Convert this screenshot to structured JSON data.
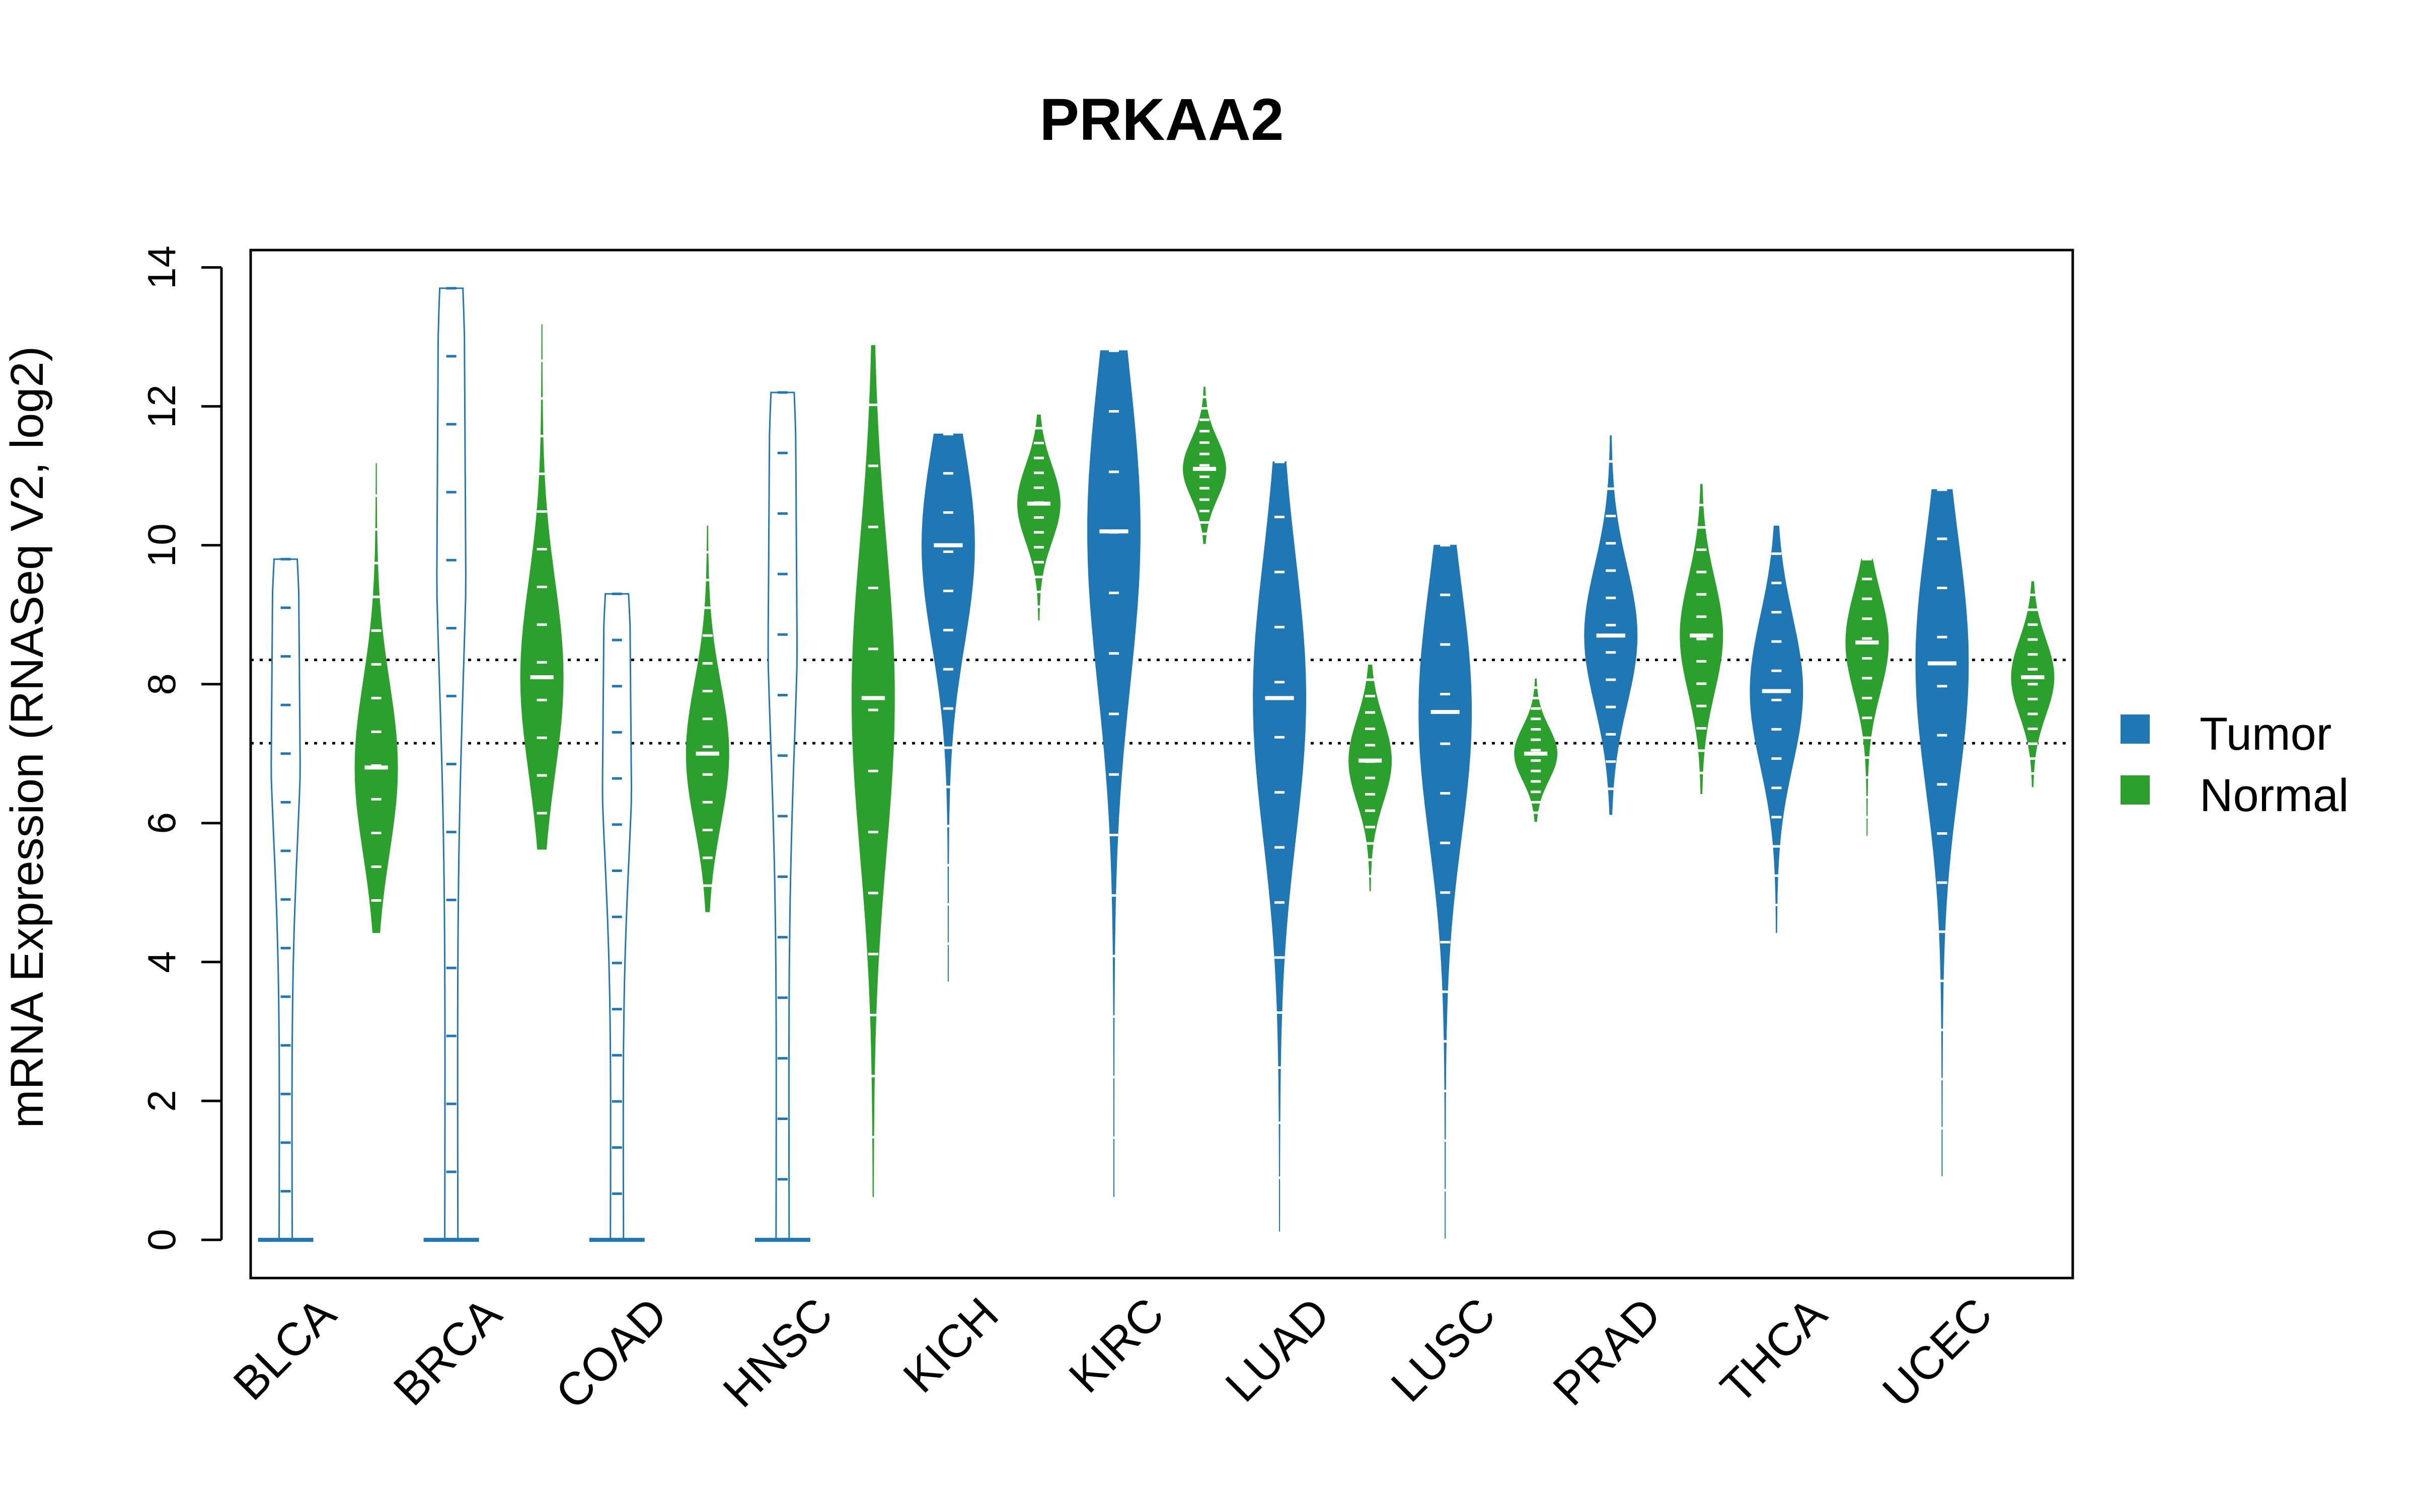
{
  "chart_data": {
    "type": "violin",
    "title": "PRKAA2",
    "xlabel": "",
    "ylabel": "mRNA Expression (RNASeq V2, log2)",
    "ylim": [
      -0.55,
      14.25
    ],
    "yticks": [
      0,
      2,
      4,
      6,
      8,
      10,
      12,
      14
    ],
    "reference_lines": [
      7.15,
      8.35
    ],
    "categories": [
      "BLCA",
      "BRCA",
      "COAD",
      "HNSC",
      "KICH",
      "KIRC",
      "LUAD",
      "LUSC",
      "PRAD",
      "THCA",
      "UCEC"
    ],
    "legend": {
      "placement": "right",
      "entries": [
        {
          "label": "Tumor",
          "color": "#1f77b4"
        },
        {
          "label": "Normal",
          "color": "#2ca02c"
        }
      ]
    },
    "series": [
      {
        "name": "Tumor",
        "color": "#1f77b4",
        "violins": [
          {
            "category": "BLCA",
            "min": 0.0,
            "max": 9.8,
            "median": 0.0,
            "zero_cluster": true
          },
          {
            "category": "BRCA",
            "min": 0.0,
            "max": 13.7,
            "median": 0.0,
            "zero_cluster": true
          },
          {
            "category": "COAD",
            "min": 0.0,
            "max": 9.3,
            "median": 0.0,
            "zero_cluster": true
          },
          {
            "category": "HNSC",
            "min": 0.0,
            "max": 12.2,
            "median": 0.0,
            "zero_cluster": true
          },
          {
            "category": "KICH",
            "min": 3.7,
            "max": 11.6,
            "median": 10.0,
            "zero_cluster": false
          },
          {
            "category": "KIRC",
            "min": 0.6,
            "max": 12.8,
            "median": 10.2,
            "zero_cluster": false
          },
          {
            "category": "LUAD",
            "min": 0.1,
            "max": 11.2,
            "median": 7.8,
            "zero_cluster": false
          },
          {
            "category": "LUSC",
            "min": 0.0,
            "max": 10.0,
            "median": 7.6,
            "zero_cluster": false
          },
          {
            "category": "PRAD",
            "min": 6.1,
            "max": 11.6,
            "median": 8.7,
            "zero_cluster": false
          },
          {
            "category": "THCA",
            "min": 4.4,
            "max": 10.3,
            "median": 7.9,
            "zero_cluster": false
          },
          {
            "category": "UCEC",
            "min": 0.9,
            "max": 10.8,
            "median": 8.3,
            "zero_cluster": false
          }
        ]
      },
      {
        "name": "Normal",
        "color": "#2ca02c",
        "violins": [
          {
            "category": "BLCA",
            "min": 4.4,
            "max": 11.2,
            "median": 6.8,
            "zero_cluster": false
          },
          {
            "category": "BRCA",
            "min": 5.6,
            "max": 13.2,
            "median": 8.1,
            "zero_cluster": false
          },
          {
            "category": "COAD",
            "min": 4.7,
            "max": 10.3,
            "median": 7.0,
            "zero_cluster": false
          },
          {
            "category": "HNSC",
            "min": 0.6,
            "max": 12.9,
            "median": 7.8,
            "zero_cluster": false
          },
          {
            "category": "KICH",
            "min": 8.9,
            "max": 11.9,
            "median": 10.6,
            "zero_cluster": false
          },
          {
            "category": "KIRC",
            "min": 10.0,
            "max": 12.3,
            "median": 11.1,
            "zero_cluster": false
          },
          {
            "category": "LUAD",
            "min": 5.0,
            "max": 8.3,
            "median": 6.9,
            "zero_cluster": false
          },
          {
            "category": "LUSC",
            "min": 6.0,
            "max": 8.1,
            "median": 7.0,
            "zero_cluster": false
          },
          {
            "category": "PRAD",
            "min": 6.4,
            "max": 10.9,
            "median": 8.7,
            "zero_cluster": false
          },
          {
            "category": "THCA",
            "min": 5.8,
            "max": 9.8,
            "median": 8.6,
            "zero_cluster": false
          },
          {
            "category": "UCEC",
            "min": 6.5,
            "max": 9.5,
            "median": 8.1,
            "zero_cluster": false
          }
        ]
      }
    ]
  }
}
